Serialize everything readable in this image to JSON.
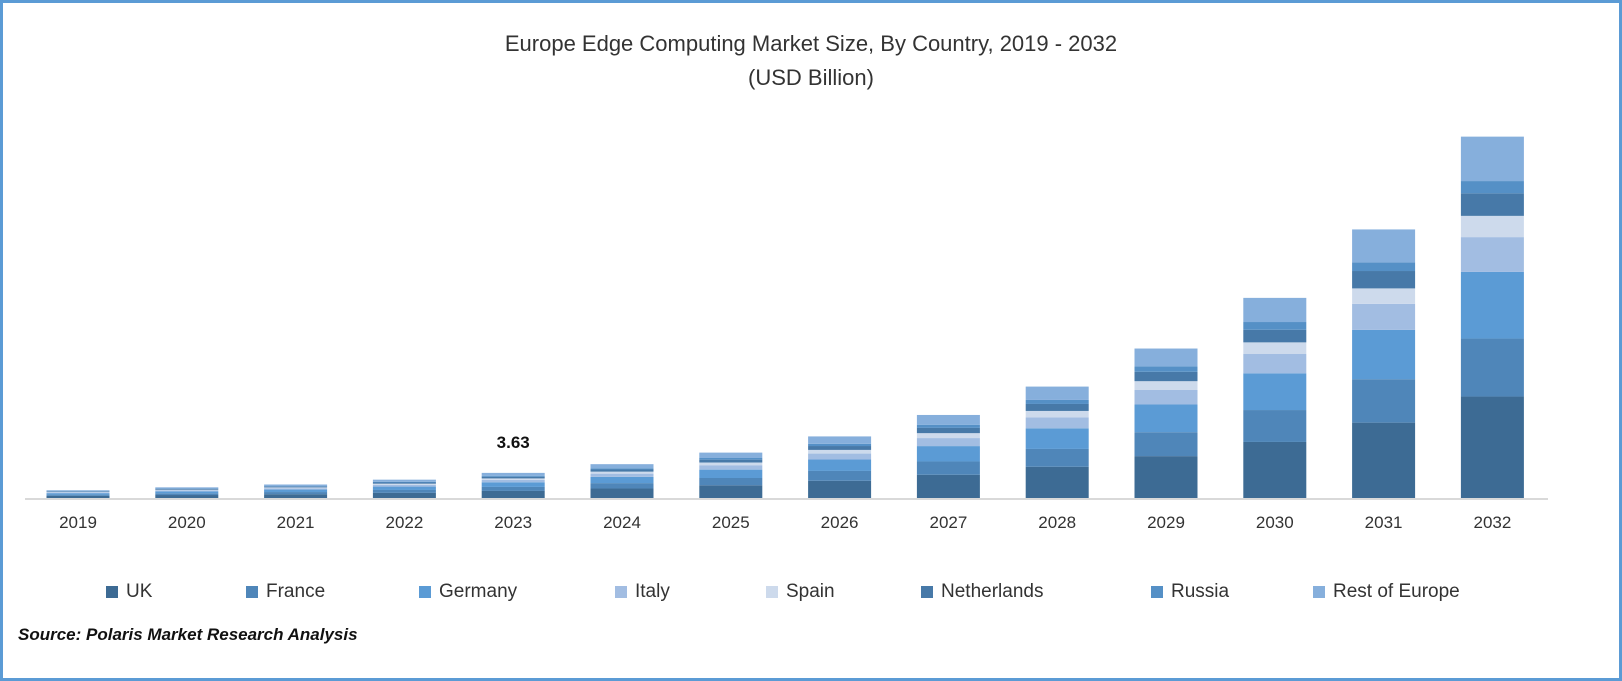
{
  "chart_data": {
    "type": "bar",
    "stacked": true,
    "title": "Europe Edge Computing Market Size, By Country, 2019 - 2032",
    "subtitle": "(USD Billion)",
    "xlabel": "",
    "ylabel": "",
    "ylim": [
      0,
      55
    ],
    "grid": false,
    "legend_position": "bottom",
    "categories": [
      "2019",
      "2020",
      "2021",
      "2022",
      "2023",
      "2024",
      "2025",
      "2026",
      "2027",
      "2028",
      "2029",
      "2030",
      "2031",
      "2032"
    ],
    "series": [
      {
        "name": "UK",
        "color": "#3d6b94",
        "values": [
          0.31,
          0.43,
          0.55,
          0.74,
          1.02,
          1.37,
          1.84,
          2.49,
          3.36,
          4.51,
          6.05,
          8.1,
          10.89,
          14.66
        ]
      },
      {
        "name": "France",
        "color": "#4f86b9",
        "values": [
          0.18,
          0.25,
          0.31,
          0.42,
          0.58,
          0.78,
          1.05,
          1.42,
          1.92,
          2.58,
          3.46,
          4.61,
          6.28,
          8.38
        ]
      },
      {
        "name": "Germany",
        "color": "#5b9bd5",
        "values": [
          0.21,
          0.28,
          0.36,
          0.49,
          0.67,
          0.9,
          1.21,
          1.65,
          2.22,
          2.98,
          4.0,
          5.31,
          7.12,
          9.63
        ]
      },
      {
        "name": "Italy",
        "color": "#a2bde2",
        "values": [
          0.11,
          0.15,
          0.19,
          0.26,
          0.35,
          0.47,
          0.64,
          0.86,
          1.16,
          1.56,
          2.1,
          2.79,
          3.77,
          5.03
        ]
      },
      {
        "name": "Spain",
        "color": "#cddaec",
        "values": [
          0.07,
          0.09,
          0.12,
          0.16,
          0.21,
          0.29,
          0.39,
          0.53,
          0.71,
          0.95,
          1.27,
          1.68,
          2.23,
          3.07
        ]
      },
      {
        "name": "Netherlands",
        "color": "#4779a8",
        "values": [
          0.07,
          0.1,
          0.12,
          0.17,
          0.23,
          0.31,
          0.41,
          0.56,
          0.76,
          1.01,
          1.36,
          1.82,
          2.51,
          3.26
        ]
      },
      {
        "name": "Russia",
        "color": "#5590c6",
        "values": [
          0.04,
          0.06,
          0.07,
          0.1,
          0.13,
          0.18,
          0.24,
          0.32,
          0.43,
          0.58,
          0.78,
          1.12,
          1.26,
          1.77
        ]
      },
      {
        "name": "Rest of Europe",
        "color": "#86afdc",
        "values": [
          0.13,
          0.18,
          0.23,
          0.31,
          0.44,
          0.59,
          0.78,
          1.07,
          1.44,
          1.93,
          2.58,
          3.49,
          4.75,
          6.42
        ]
      }
    ],
    "annotations": [
      {
        "category": "2023",
        "text": "3.63"
      }
    ]
  },
  "source": "Source: Polaris Market Research Analysis"
}
